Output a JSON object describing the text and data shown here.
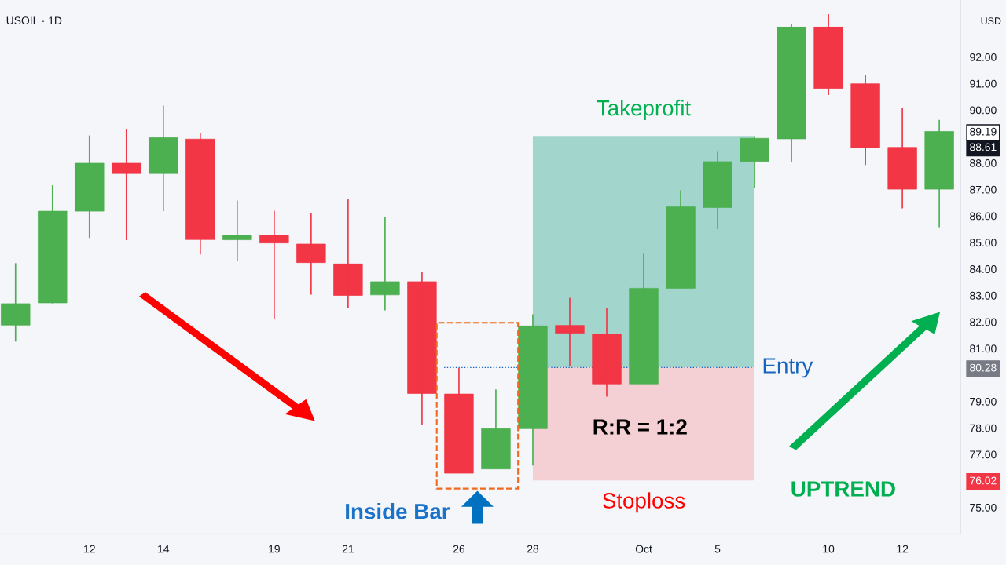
{
  "chart_data": {
    "type": "candlestick",
    "title": "USOIL · 1D",
    "ylabel": "USD",
    "categories": [
      null,
      null,
      "12",
      null,
      "14",
      null,
      null,
      "19",
      null,
      "21",
      null,
      null,
      "26",
      null,
      "28",
      null,
      null,
      "Oct",
      null,
      "5",
      null,
      null,
      "10",
      null,
      "12",
      null
    ],
    "ohlc": [
      [
        81.88,
        84.22,
        81.26,
        82.69
      ],
      [
        82.72,
        87.16,
        82.7,
        86.18
      ],
      [
        86.18,
        89.04,
        85.17,
        87.99
      ],
      [
        87.99,
        89.29,
        85.09,
        87.6
      ],
      [
        87.6,
        90.17,
        86.18,
        88.96
      ],
      [
        88.9,
        89.13,
        84.55,
        85.11
      ],
      [
        85.1,
        86.58,
        84.3,
        85.28
      ],
      [
        85.28,
        86.2,
        82.12,
        84.98
      ],
      [
        84.94,
        86.1,
        83.03,
        84.24
      ],
      [
        84.19,
        86.66,
        82.52,
        83.0
      ],
      [
        83.02,
        85.97,
        82.44,
        83.52
      ],
      [
        83.52,
        83.89,
        78.12,
        79.3
      ],
      [
        79.28,
        80.26,
        76.29,
        76.29
      ],
      [
        76.45,
        79.45,
        76.45,
        77.97
      ],
      [
        77.97,
        82.29,
        76.58,
        81.85
      ],
      [
        81.87,
        82.91,
        80.35,
        81.58
      ],
      [
        81.54,
        82.52,
        79.18,
        79.66
      ],
      [
        79.66,
        84.58,
        79.66,
        83.27
      ],
      [
        83.27,
        86.97,
        83.27,
        86.35
      ],
      [
        86.32,
        88.42,
        85.5,
        88.05
      ],
      [
        88.06,
        89.01,
        87.06,
        88.93
      ],
      [
        88.91,
        93.26,
        88.02,
        93.13
      ],
      [
        93.13,
        93.62,
        90.57,
        90.81
      ],
      [
        90.99,
        91.33,
        87.92,
        88.57
      ],
      [
        88.59,
        90.07,
        86.29,
        87.01
      ],
      [
        87.01,
        89.63,
        85.58,
        89.19
      ]
    ],
    "colors": [
      "#4caf50",
      "#4caf50",
      "#4caf50",
      "#f23645",
      "#4caf50",
      "#f23645",
      "#4caf50",
      "#f23645",
      "#f23645",
      "#f23645",
      "#4caf50",
      "#f23645",
      "#f23645",
      "#4caf50",
      "#4caf50",
      "#f23645",
      "#f23645",
      "#4caf50",
      "#4caf50",
      "#4caf50",
      "#4caf50",
      "#4caf50",
      "#f23645",
      "#f23645",
      "#f23645",
      "#4caf50"
    ],
    "ylim": [
      74.0,
      94.15
    ],
    "yticks": [
      {
        "value": 75,
        "label": "75.00"
      },
      {
        "value": 76.02,
        "label": "76.02"
      },
      {
        "value": 77,
        "label": "77.00"
      },
      {
        "value": 78,
        "label": "78.00"
      },
      {
        "value": 79,
        "label": "79.00"
      },
      {
        "value": 80.28,
        "label": "80.28"
      },
      {
        "value": 81,
        "label": "81.00"
      },
      {
        "value": 82,
        "label": "82.00"
      },
      {
        "value": 83,
        "label": "83.00"
      },
      {
        "value": 84,
        "label": "84.00"
      },
      {
        "value": 85,
        "label": "85.00"
      },
      {
        "value": 86,
        "label": "86.00"
      },
      {
        "value": 87,
        "label": "87.00"
      },
      {
        "value": 88,
        "label": "88.00"
      },
      {
        "value": 88.61,
        "label": "88.61"
      },
      {
        "value": 89.19,
        "label": "89.19"
      },
      {
        "value": 90,
        "label": "90.00"
      },
      {
        "value": 91,
        "label": "91.00"
      },
      {
        "value": 92,
        "label": "92.00"
      }
    ],
    "ref_lines": [
      {
        "axis": "y",
        "value": 80.28,
        "label": "Entry",
        "color": "#1565c0",
        "line_style": "dotted"
      }
    ],
    "bands": [
      {
        "axis": "y",
        "from": 80.28,
        "to": 89.02,
        "label": "Takeprofit",
        "color": "#a2d6cd"
      },
      {
        "axis": "y",
        "from": 76.02,
        "to": 80.28,
        "label": "Stoploss",
        "color": "#f4d0d4"
      }
    ],
    "annotations": [
      "R:R = 1:2",
      "Inside Bar",
      "UPTREND"
    ],
    "grid": false
  }
}
